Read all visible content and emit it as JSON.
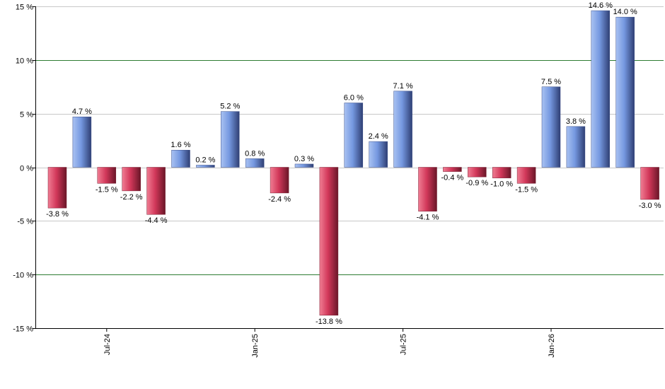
{
  "chart_data": {
    "type": "bar",
    "ylim": [
      -15,
      15
    ],
    "y_ticks": [
      {
        "value": 15,
        "label": "15 %"
      },
      {
        "value": 10,
        "label": "10 %"
      },
      {
        "value": 5,
        "label": "5 %"
      },
      {
        "value": 0,
        "label": "0 %"
      },
      {
        "value": -5,
        "label": "-5 %"
      },
      {
        "value": -10,
        "label": "-10 %"
      },
      {
        "value": -15,
        "label": "-15 %"
      }
    ],
    "x_ticks": [
      {
        "index": 2,
        "label": "Jul-24"
      },
      {
        "index": 8,
        "label": "Jan-25"
      },
      {
        "index": 14,
        "label": "Jul-25"
      },
      {
        "index": 20,
        "label": "Jan-26"
      }
    ],
    "values": [
      -3.8,
      4.7,
      -1.5,
      -2.2,
      -4.4,
      1.6,
      0.2,
      5.2,
      0.8,
      -2.4,
      0.3,
      -13.8,
      6.0,
      2.4,
      7.1,
      -4.1,
      -0.4,
      -0.9,
      -1.0,
      -1.5,
      7.5,
      3.8,
      14.6,
      14.0,
      -3.0
    ],
    "labels": [
      "-3.8 %",
      "4.7 %",
      "-1.5 %",
      "-2.2 %",
      "-4.4 %",
      "1.6 %",
      "0.2 %",
      "5.2 %",
      "0.8 %",
      "-2.4 %",
      "0.3 %",
      "-13.8 %",
      "6.0 %",
      "2.4 %",
      "7.1 %",
      "-4.1 %",
      "-0.4 %",
      "-0.9 %",
      "-1.0 %",
      "-1.5 %",
      "7.5 %",
      "3.8 %",
      "14.6 %",
      "14.0 %",
      "-3.0 %"
    ],
    "grid": true,
    "major_grid_values": [
      10,
      -10
    ],
    "colors": {
      "positive": "#7a9fe6",
      "negative": "#d83c5a",
      "grid": "#c8c8c8",
      "major_grid": "#2e7d32"
    }
  }
}
